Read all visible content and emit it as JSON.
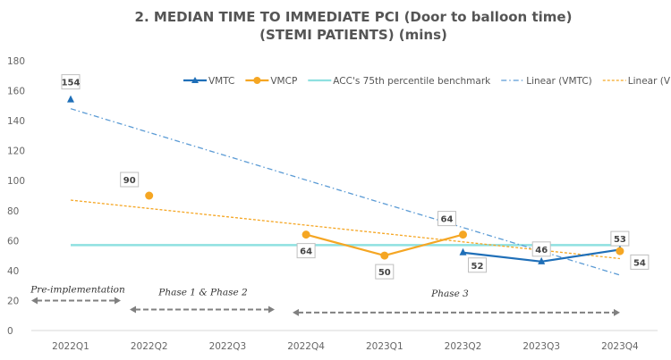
{
  "chart_data": {
    "type": "line",
    "title": [
      "2. MEDIAN TIME TO IMMEDIATE PCI (Door to balloon time)",
      "(STEMI PATIENTS) (mins)"
    ],
    "categories": [
      "2022Q1",
      "2022Q2",
      "2022Q3",
      "2022Q4",
      "2023Q1",
      "2023Q2",
      "2023Q3",
      "2023Q4"
    ],
    "ylim": [
      0,
      180
    ],
    "yticks": [
      0,
      20,
      40,
      60,
      80,
      100,
      120,
      140,
      160,
      180
    ],
    "series": [
      {
        "name": "VMTC",
        "color": "#1f6fb8",
        "marker": "triangle",
        "values": [
          154,
          null,
          null,
          null,
          null,
          52,
          46,
          54
        ]
      },
      {
        "name": "VMCP",
        "color": "#f5a623",
        "marker": "circle",
        "values": [
          null,
          90,
          null,
          64,
          50,
          64,
          null,
          53
        ]
      },
      {
        "name": "ACC's 75th percentile benchmark",
        "color": "#8ee0e0",
        "values": [
          57,
          57,
          57,
          57,
          57,
          57,
          57,
          57
        ]
      }
    ],
    "trendlines": [
      {
        "name": "Linear (VMTC)",
        "color": "#5b9bd5",
        "start": 148,
        "end": 37
      },
      {
        "name": "Linear (VMCP)",
        "color": "#f5a623",
        "start": 87,
        "end": 48
      }
    ],
    "legend_position": "top-right",
    "annotations": [
      {
        "text": "Pre-implementation",
        "from": "2022Q1",
        "to": "2022Q2"
      },
      {
        "text": "Phase 1 & Phase 2",
        "from": "2022Q2",
        "to": "2022Q4"
      },
      {
        "text": "Phase 3",
        "from": "2022Q4",
        "to": "2023Q4"
      }
    ]
  }
}
